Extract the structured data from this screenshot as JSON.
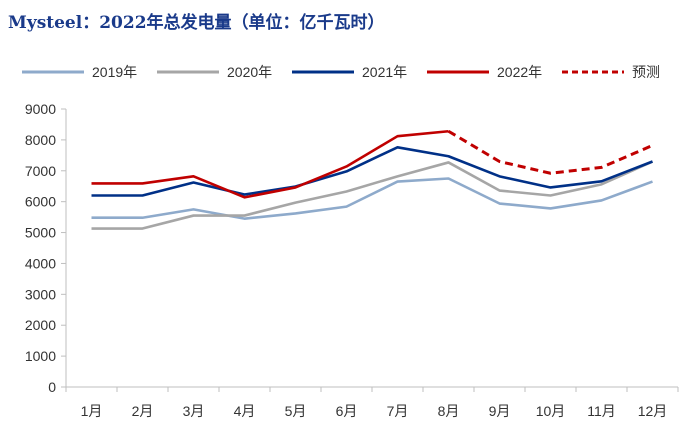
{
  "chart_data": {
    "type": "line",
    "title": "Mysteel：2022年总发电量（单位：亿千瓦时）",
    "categories": [
      "1月",
      "2月",
      "3月",
      "4月",
      "5月",
      "6月",
      "7月",
      "8月",
      "9月",
      "10月",
      "11月",
      "12月"
    ],
    "ylim": [
      0,
      9000
    ],
    "yticks": [
      0,
      1000,
      2000,
      3000,
      4000,
      5000,
      6000,
      7000,
      8000,
      9000
    ],
    "grid": false,
    "legend": "top",
    "series": [
      {
        "name": "2019年",
        "color": "#8eaacb",
        "dashed": false,
        "values": [
          5480,
          5480,
          5750,
          5450,
          5620,
          5840,
          6650,
          6750,
          5940,
          5780,
          6040,
          6650
        ]
      },
      {
        "name": "2020年",
        "color": "#a6a6a6",
        "dashed": false,
        "values": [
          5130,
          5130,
          5550,
          5550,
          5970,
          6330,
          6820,
          7270,
          6360,
          6200,
          6560,
          7300
        ]
      },
      {
        "name": "2021年",
        "color": "#003087",
        "dashed": false,
        "values": [
          6200,
          6200,
          6620,
          6230,
          6490,
          6980,
          7760,
          7470,
          6820,
          6460,
          6660,
          7300
        ]
      },
      {
        "name": "2022年",
        "color": "#c00000",
        "dashed": false,
        "values": [
          6590,
          6590,
          6820,
          6140,
          6460,
          7140,
          8120,
          8280,
          null,
          null,
          null,
          null
        ]
      },
      {
        "name": "预测",
        "color": "#c00000",
        "dashed": true,
        "values": [
          null,
          null,
          null,
          null,
          null,
          null,
          null,
          8280,
          7300,
          6920,
          7110,
          7820
        ]
      }
    ]
  }
}
